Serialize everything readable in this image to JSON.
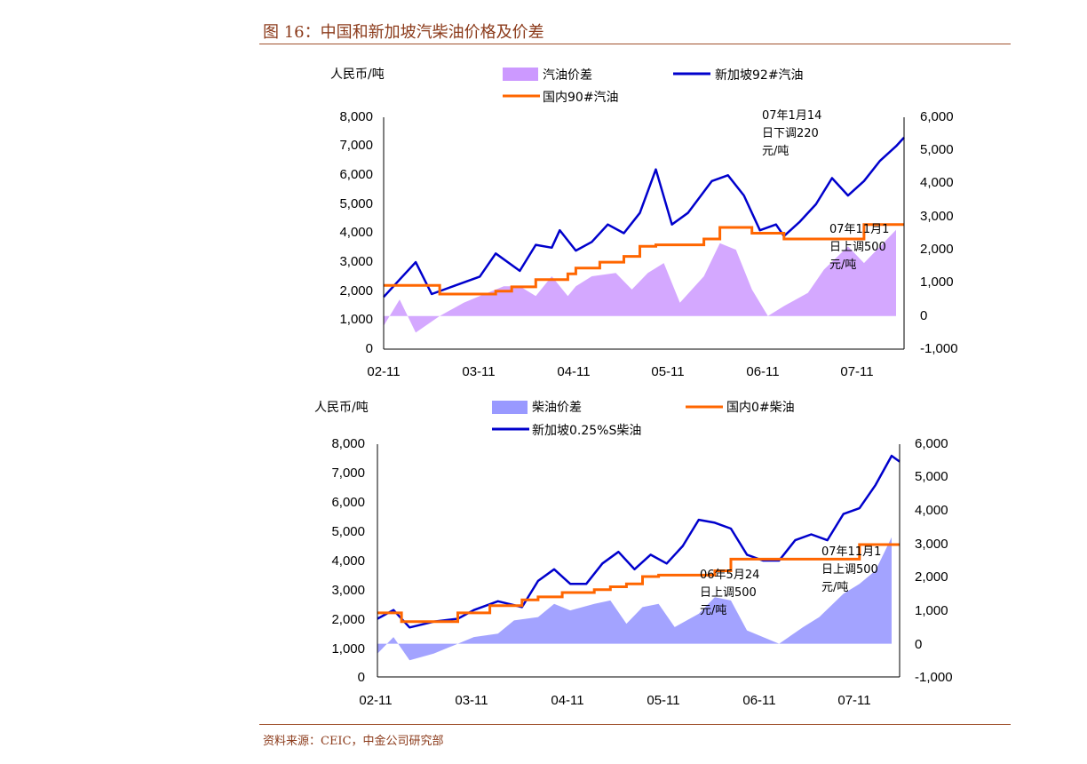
{
  "figure": {
    "title": "图 16：中国和新加坡汽柴油价格及价差",
    "source": "资料来源：CEIC，中金公司研究部"
  },
  "chart_data": [
    {
      "type": "line",
      "id": "gasoline",
      "left_axis_label": "人民币/吨",
      "x_tick_labels": [
        "02-11",
        "03-11",
        "04-11",
        "05-11",
        "06-11",
        "07-11"
      ],
      "xlim": [
        "2002-11",
        "2008-04"
      ],
      "ylim_left": [
        0,
        8000
      ],
      "yticks_left": [
        "0",
        "1,000",
        "2,000",
        "3,000",
        "4,000",
        "5,000",
        "6,000",
        "7,000",
        "8,000"
      ],
      "ylim_right": [
        -1000,
        6000
      ],
      "yticks_right": [
        "-1,000",
        "0",
        "1,000",
        "2,000",
        "3,000",
        "4,000",
        "5,000",
        "6,000"
      ],
      "series": [
        {
          "name": "汽油价差",
          "kind": "area",
          "axis": "right",
          "color": "#cc99ff",
          "points": [
            [
              "2002-11",
              -300
            ],
            [
              "2003-01",
              500
            ],
            [
              "2003-03",
              -500
            ],
            [
              "2003-06",
              0
            ],
            [
              "2003-09",
              400
            ],
            [
              "2003-11",
              600
            ],
            [
              "2004-02",
              900
            ],
            [
              "2004-04",
              900
            ],
            [
              "2004-06",
              600
            ],
            [
              "2004-08",
              1200
            ],
            [
              "2004-10",
              600
            ],
            [
              "2004-11",
              900
            ],
            [
              "2005-01",
              1200
            ],
            [
              "2005-04",
              1300
            ],
            [
              "2005-06",
              800
            ],
            [
              "2005-08",
              1300
            ],
            [
              "2005-10",
              1600
            ],
            [
              "2005-12",
              400
            ],
            [
              "2006-03",
              1200
            ],
            [
              "2006-05",
              2200
            ],
            [
              "2006-07",
              2000
            ],
            [
              "2006-09",
              800
            ],
            [
              "2006-11",
              0
            ],
            [
              "2007-01",
              300
            ],
            [
              "2007-04",
              700
            ],
            [
              "2007-06",
              1400
            ],
            [
              "2007-09",
              2100
            ],
            [
              "2007-11",
              1600
            ],
            [
              "2008-01",
              2100
            ],
            [
              "2008-03",
              2600
            ]
          ]
        },
        {
          "name": "新加坡92#汽油",
          "kind": "line",
          "axis": "left",
          "color": "#0000cc",
          "points": [
            [
              "2002-11",
              1800
            ],
            [
              "2003-01",
              2400
            ],
            [
              "2003-03",
              3000
            ],
            [
              "2003-05",
              1900
            ],
            [
              "2003-08",
              2200
            ],
            [
              "2003-11",
              2500
            ],
            [
              "2004-01",
              3300
            ],
            [
              "2004-04",
              2700
            ],
            [
              "2004-06",
              3600
            ],
            [
              "2004-08",
              3500
            ],
            [
              "2004-09",
              4100
            ],
            [
              "2004-11",
              3400
            ],
            [
              "2005-01",
              3700
            ],
            [
              "2005-03",
              4300
            ],
            [
              "2005-05",
              4000
            ],
            [
              "2005-07",
              4700
            ],
            [
              "2005-09",
              6200
            ],
            [
              "2005-11",
              4300
            ],
            [
              "2006-01",
              4700
            ],
            [
              "2006-04",
              5800
            ],
            [
              "2006-06",
              6000
            ],
            [
              "2006-08",
              5300
            ],
            [
              "2006-10",
              4100
            ],
            [
              "2006-12",
              4300
            ],
            [
              "2007-01",
              3900
            ],
            [
              "2007-03",
              4400
            ],
            [
              "2007-05",
              5000
            ],
            [
              "2007-07",
              5900
            ],
            [
              "2007-09",
              5300
            ],
            [
              "2007-11",
              5800
            ],
            [
              "2008-01",
              6500
            ],
            [
              "2008-03",
              7000
            ],
            [
              "2008-04",
              7300
            ]
          ]
        },
        {
          "name": "国内90#汽油",
          "kind": "step",
          "axis": "left",
          "color": "#ff6600",
          "points": [
            [
              "2002-11",
              2200
            ],
            [
              "2003-06",
              1900
            ],
            [
              "2004-01",
              2000
            ],
            [
              "2004-03",
              2150
            ],
            [
              "2004-06",
              2400
            ],
            [
              "2004-10",
              2600
            ],
            [
              "2004-11",
              2800
            ],
            [
              "2005-02",
              3000
            ],
            [
              "2005-05",
              3200
            ],
            [
              "2005-07",
              3550
            ],
            [
              "2005-09",
              3600
            ],
            [
              "2006-03",
              3800
            ],
            [
              "2006-05",
              4200
            ],
            [
              "2006-09",
              4000
            ],
            [
              "2007-01",
              3800
            ],
            [
              "2007-11",
              4300
            ],
            [
              "2008-04",
              4300
            ]
          ]
        }
      ],
      "annotations": [
        {
          "text": [
            "07年1月14",
            "日下调220",
            "元/吨"
          ]
        },
        {
          "text": [
            "07年11月1",
            "日上调500",
            "元/吨"
          ]
        }
      ],
      "legend_position": "top"
    },
    {
      "type": "line",
      "id": "diesel",
      "left_axis_label": "人民币/吨",
      "x_tick_labels": [
        "02-11",
        "03-11",
        "04-11",
        "05-11",
        "06-11",
        "07-11"
      ],
      "xlim": [
        "2002-11",
        "2008-04"
      ],
      "ylim_left": [
        0,
        8000
      ],
      "yticks_left": [
        "0",
        "1,000",
        "2,000",
        "3,000",
        "4,000",
        "5,000",
        "6,000",
        "7,000",
        "8,000"
      ],
      "ylim_right": [
        -1000,
        6000
      ],
      "yticks_right": [
        "-1,000",
        "0",
        "1,000",
        "2,000",
        "3,000",
        "4,000",
        "5,000",
        "6,000"
      ],
      "series": [
        {
          "name": "柴油价差",
          "kind": "area",
          "axis": "right",
          "color": "#9999ff",
          "points": [
            [
              "2002-11",
              -300
            ],
            [
              "2003-01",
              200
            ],
            [
              "2003-03",
              -500
            ],
            [
              "2003-06",
              -300
            ],
            [
              "2003-09",
              0
            ],
            [
              "2003-11",
              200
            ],
            [
              "2004-02",
              300
            ],
            [
              "2004-04",
              700
            ],
            [
              "2004-07",
              800
            ],
            [
              "2004-09",
              1200
            ],
            [
              "2004-11",
              1000
            ],
            [
              "2005-02",
              1200
            ],
            [
              "2005-04",
              1300
            ],
            [
              "2005-06",
              600
            ],
            [
              "2005-08",
              1100
            ],
            [
              "2005-10",
              1200
            ],
            [
              "2005-12",
              500
            ],
            [
              "2006-03",
              900
            ],
            [
              "2006-05",
              1400
            ],
            [
              "2006-07",
              1300
            ],
            [
              "2006-09",
              400
            ],
            [
              "2006-11",
              200
            ],
            [
              "2007-01",
              0
            ],
            [
              "2007-04",
              500
            ],
            [
              "2007-06",
              800
            ],
            [
              "2007-09",
              1500
            ],
            [
              "2007-11",
              1800
            ],
            [
              "2008-01",
              2200
            ],
            [
              "2008-03",
              3200
            ]
          ]
        },
        {
          "name": "新加坡0.25%S柴油",
          "kind": "line",
          "axis": "left",
          "color": "#0000cc",
          "points": [
            [
              "2002-11",
              2000
            ],
            [
              "2003-01",
              2300
            ],
            [
              "2003-03",
              1700
            ],
            [
              "2003-06",
              1900
            ],
            [
              "2003-09",
              2000
            ],
            [
              "2003-11",
              2300
            ],
            [
              "2004-02",
              2600
            ],
            [
              "2004-05",
              2400
            ],
            [
              "2004-07",
              3300
            ],
            [
              "2004-09",
              3700
            ],
            [
              "2004-11",
              3200
            ],
            [
              "2005-01",
              3200
            ],
            [
              "2005-03",
              3900
            ],
            [
              "2005-05",
              4300
            ],
            [
              "2005-07",
              3700
            ],
            [
              "2005-09",
              4200
            ],
            [
              "2005-11",
              3900
            ],
            [
              "2006-01",
              4500
            ],
            [
              "2006-03",
              5400
            ],
            [
              "2006-05",
              5300
            ],
            [
              "2006-07",
              5100
            ],
            [
              "2006-09",
              4200
            ],
            [
              "2006-11",
              4000
            ],
            [
              "2007-01",
              4000
            ],
            [
              "2007-03",
              4700
            ],
            [
              "2007-05",
              4900
            ],
            [
              "2007-07",
              4700
            ],
            [
              "2007-09",
              5600
            ],
            [
              "2007-11",
              5800
            ],
            [
              "2008-01",
              6600
            ],
            [
              "2008-03",
              7600
            ],
            [
              "2008-04",
              7400
            ]
          ]
        },
        {
          "name": "国内0#柴油",
          "kind": "step",
          "axis": "left",
          "color": "#ff6600",
          "points": [
            [
              "2002-11",
              2200
            ],
            [
              "2003-02",
              1900
            ],
            [
              "2003-09",
              2200
            ],
            [
              "2004-01",
              2450
            ],
            [
              "2004-05",
              2650
            ],
            [
              "2004-07",
              2750
            ],
            [
              "2004-10",
              2900
            ],
            [
              "2005-02",
              3000
            ],
            [
              "2005-04",
              3100
            ],
            [
              "2005-06",
              3200
            ],
            [
              "2005-08",
              3450
            ],
            [
              "2005-10",
              3500
            ],
            [
              "2006-05",
              3650
            ],
            [
              "2006-07",
              4050
            ],
            [
              "2007-11",
              4550
            ],
            [
              "2008-04",
              4550
            ]
          ]
        }
      ],
      "annotations": [
        {
          "text": [
            "06年5月24",
            "日上调500",
            "元/吨"
          ]
        },
        {
          "text": [
            "07年11月1",
            "日上调500",
            "元/吨"
          ]
        }
      ],
      "legend_position": "top"
    }
  ]
}
